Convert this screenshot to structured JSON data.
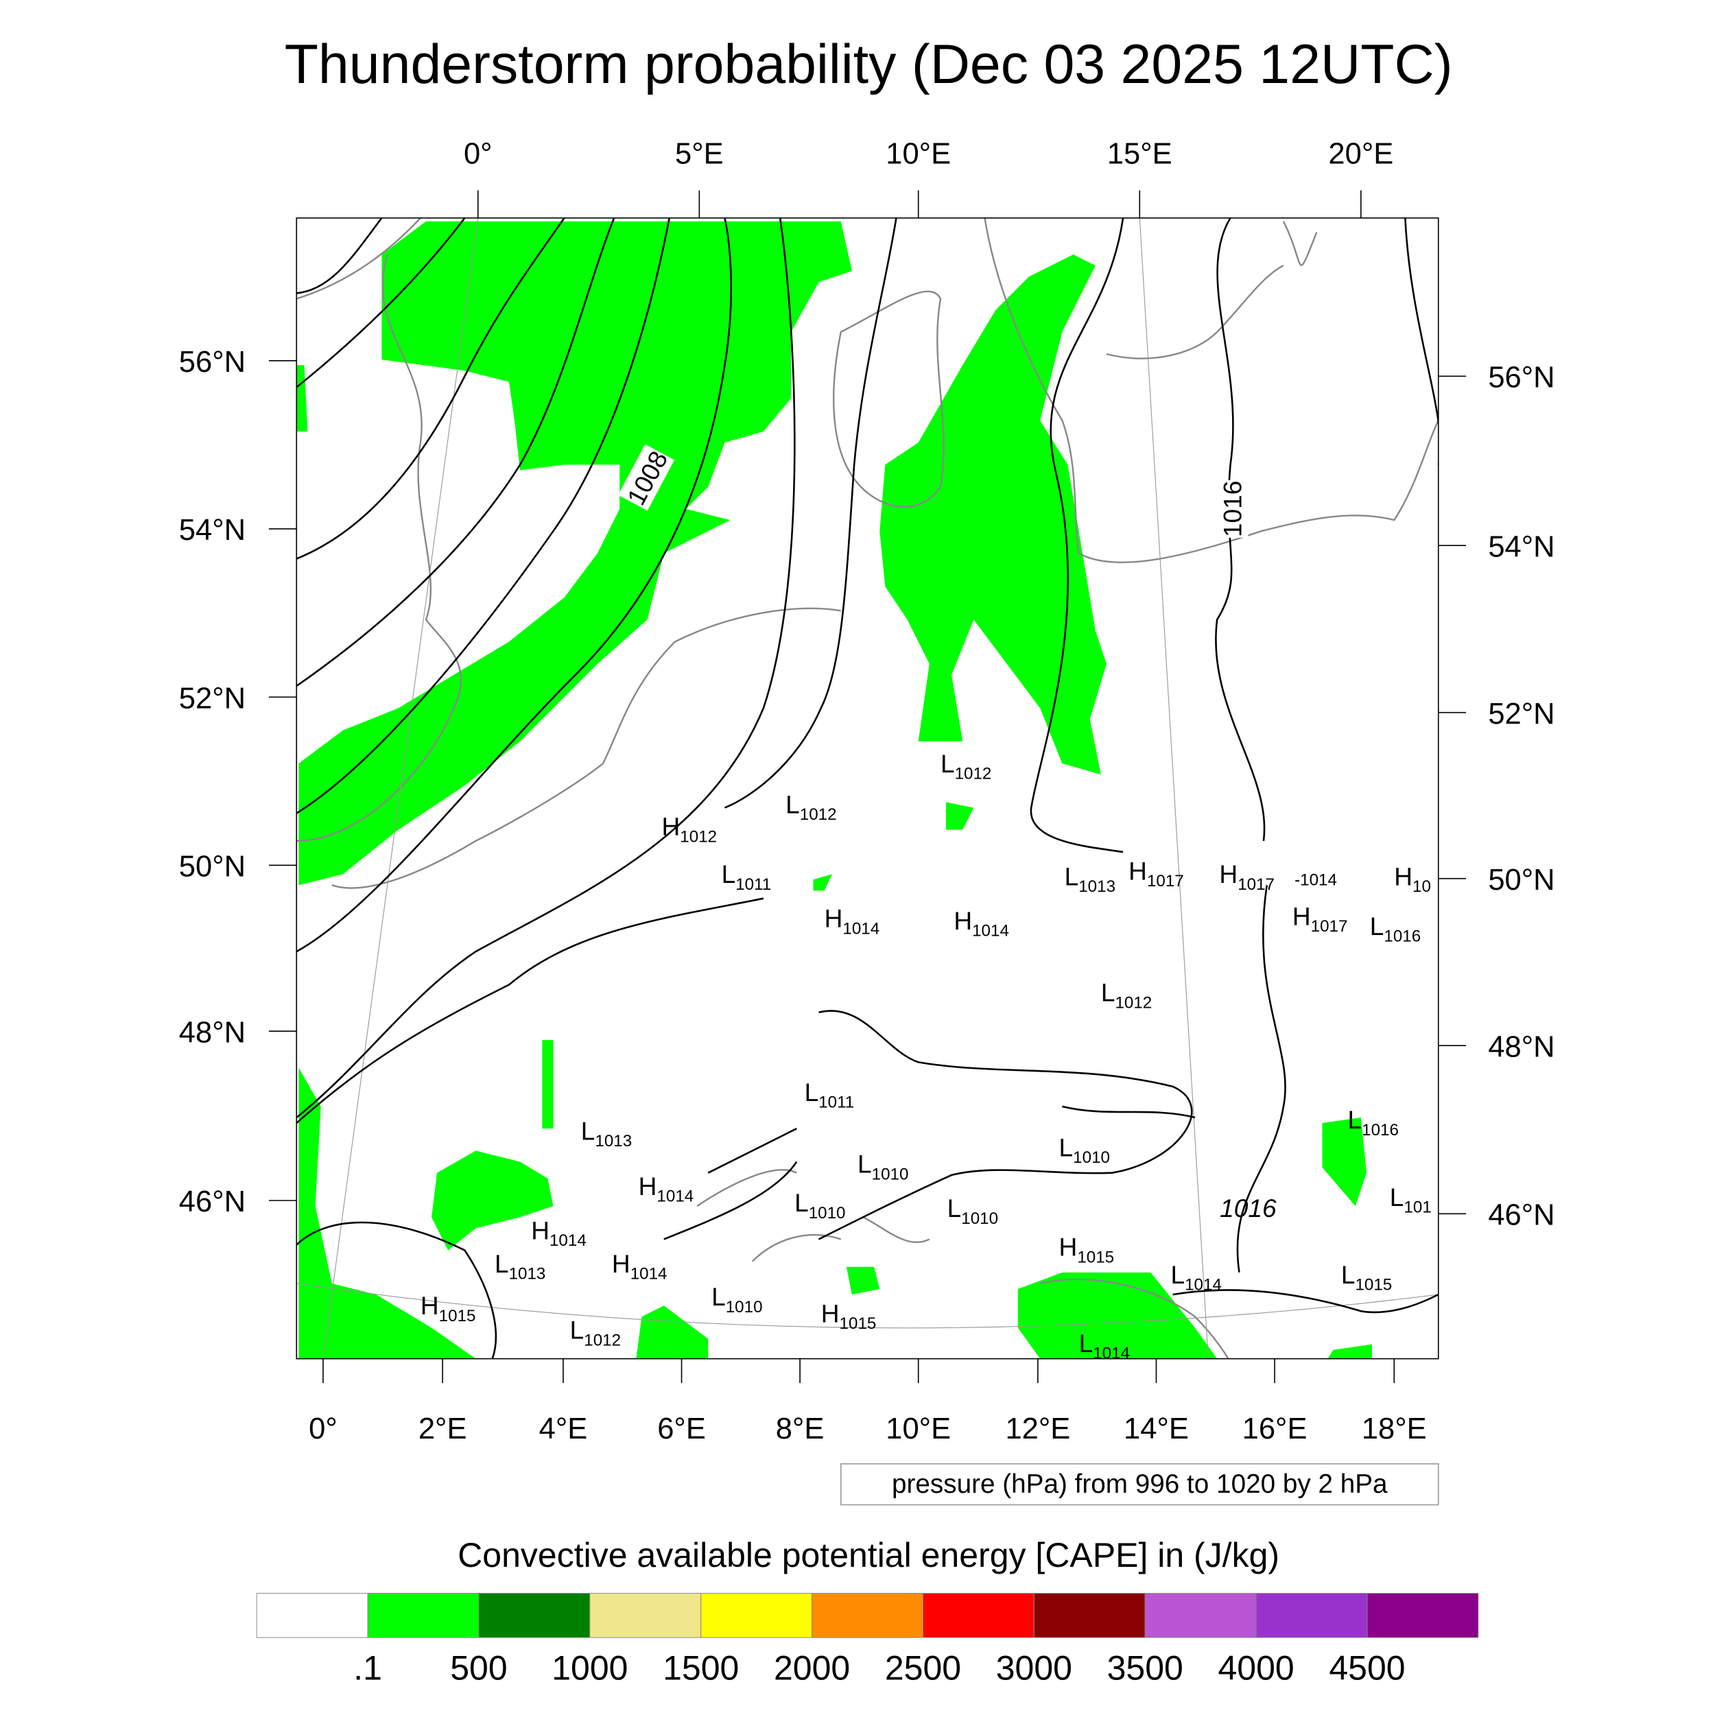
{
  "title": "Thunderstorm probability (Dec 03 2025 12UTC)",
  "axes": {
    "top_lon": [
      "0°",
      "5°E",
      "10°E",
      "15°E",
      "20°E"
    ],
    "bottom_lon": [
      "0°",
      "2°E",
      "4°E",
      "6°E",
      "8°E",
      "10°E",
      "12°E",
      "14°E",
      "16°E",
      "18°E"
    ],
    "left_lat": [
      "56°N",
      "54°N",
      "52°N",
      "50°N",
      "48°N",
      "46°N"
    ],
    "right_lat": [
      "56°N",
      "54°N",
      "52°N",
      "50°N",
      "48°N",
      "46°N"
    ]
  },
  "contour_labels": [
    "1008",
    "1016",
    "1016"
  ],
  "pressure_centers": [
    {
      "letter": "H",
      "value": "1012"
    },
    {
      "letter": "L",
      "value": "1012"
    },
    {
      "letter": "L",
      "value": "1011"
    },
    {
      "letter": "H",
      "value": "1014"
    },
    {
      "letter": "H",
      "value": "1014"
    },
    {
      "letter": "L",
      "value": "1012"
    },
    {
      "letter": "L",
      "value": "1013"
    },
    {
      "letter": "H",
      "value": "1017"
    },
    {
      "letter": "H",
      "value": "1017"
    },
    {
      "letter": "",
      "value": "-1014"
    },
    {
      "letter": "H",
      "value": "10"
    },
    {
      "letter": "H",
      "value": "1017"
    },
    {
      "letter": "L",
      "value": "1016"
    },
    {
      "letter": "L",
      "value": "1012"
    },
    {
      "letter": "L",
      "value": "1011"
    },
    {
      "letter": "L",
      "value": "1013"
    },
    {
      "letter": "L",
      "value": "1010"
    },
    {
      "letter": "L",
      "value": "1010"
    },
    {
      "letter": "H",
      "value": "1014"
    },
    {
      "letter": "L",
      "value": "1010"
    },
    {
      "letter": "L",
      "value": "1010"
    },
    {
      "letter": "H",
      "value": "1014"
    },
    {
      "letter": "L",
      "value": "1013"
    },
    {
      "letter": "H",
      "value": "1014"
    },
    {
      "letter": "H",
      "value": "1015"
    },
    {
      "letter": "L",
      "value": "1014"
    },
    {
      "letter": "L",
      "value": "1015"
    },
    {
      "letter": "L",
      "value": "1016"
    },
    {
      "letter": "L",
      "value": "101"
    },
    {
      "letter": "H",
      "value": "1015"
    },
    {
      "letter": "L",
      "value": "1010"
    },
    {
      "letter": "H",
      "value": "1015"
    },
    {
      "letter": "L",
      "value": "1012"
    },
    {
      "letter": "L",
      "value": "1014"
    }
  ],
  "legend_note": "pressure (hPa) from 996 to 1020 by 2 hPa",
  "colorbar": {
    "title": "Convective available potential energy [CAPE] in (J/kg)",
    "colors": [
      "#ffffff",
      "#00ff00",
      "#008000",
      "#f0e68c",
      "#ffff00",
      "#ff8c00",
      "#ff0000",
      "#8b0000",
      "#ba55d3",
      "#9932cc",
      "#8b008b"
    ],
    "labels": [
      ".1",
      "500",
      "1000",
      "1500",
      "2000",
      "2500",
      "3000",
      "3500",
      "4000",
      "4500"
    ]
  },
  "cape_fill_color": "#00ff00"
}
